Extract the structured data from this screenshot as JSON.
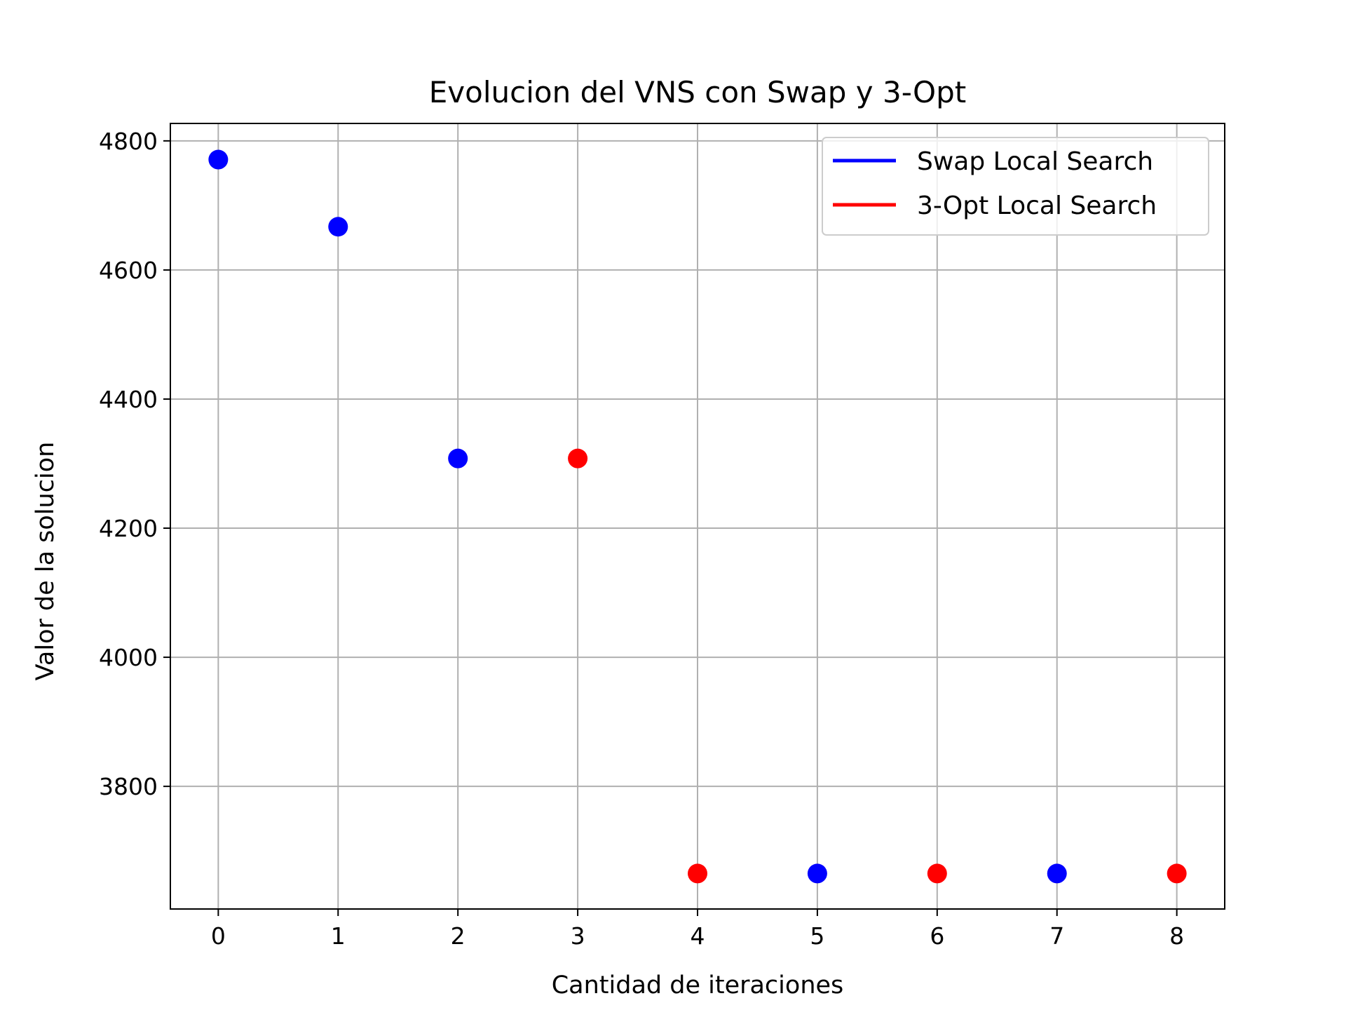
{
  "chart_data": {
    "type": "scatter",
    "title": "Evolucion del VNS con Swap y 3-Opt",
    "xlabel": "Cantidad de iteraciones",
    "ylabel": "Valor de la solucion",
    "xlim": [
      -0.4,
      8.4
    ],
    "ylim": [
      3610,
      4827
    ],
    "xticks": [
      0,
      1,
      2,
      3,
      4,
      5,
      6,
      7,
      8
    ],
    "yticks": [
      3800,
      4000,
      4200,
      4400,
      4600,
      4800
    ],
    "grid": true,
    "legend_position": "top-right",
    "series": [
      {
        "name": "Swap Local Search",
        "color": "#0000ff",
        "points": [
          {
            "x": 0,
            "y": 4771
          },
          {
            "x": 1,
            "y": 4667
          },
          {
            "x": 2,
            "y": 4308
          },
          {
            "x": 5,
            "y": 3665
          },
          {
            "x": 7,
            "y": 3665
          }
        ]
      },
      {
        "name": "3-Opt Local Search",
        "color": "#ff0000",
        "points": [
          {
            "x": 3,
            "y": 4308
          },
          {
            "x": 4,
            "y": 3665
          },
          {
            "x": 6,
            "y": 3665
          },
          {
            "x": 8,
            "y": 3665
          }
        ]
      }
    ]
  }
}
